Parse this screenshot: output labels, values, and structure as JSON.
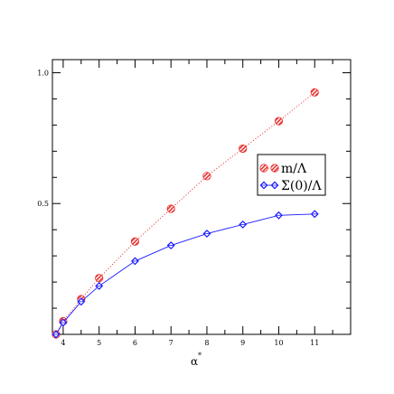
{
  "chart_data": {
    "type": "line",
    "title": "",
    "xlabel": "α*",
    "ylabel": "",
    "xlim": [
      3.7,
      12.0
    ],
    "ylim": [
      0.0,
      1.05
    ],
    "x_ticks": [
      "4",
      "5",
      "6",
      "7",
      "8",
      "9",
      "10",
      "11"
    ],
    "y_ticks": [
      "0.5",
      "1.0"
    ],
    "grid": false,
    "legend_position": "right",
    "series": [
      {
        "name": "m/Λ",
        "color": "#e8312f",
        "line_style": "dotted",
        "marker": "hatched-circle",
        "x": [
          3.8,
          4.0,
          4.5,
          5.0,
          6.0,
          7.0,
          8.0,
          9.0,
          10.0,
          11.0
        ],
        "y": [
          0.0,
          0.05,
          0.135,
          0.215,
          0.355,
          0.48,
          0.605,
          0.71,
          0.815,
          0.925
        ]
      },
      {
        "name": "Σ(0)/Λ",
        "color": "#1a1aff",
        "line_style": "solid",
        "marker": "diamond",
        "x": [
          3.8,
          4.0,
          4.5,
          5.0,
          6.0,
          7.0,
          8.0,
          9.0,
          10.0,
          11.0
        ],
        "y": [
          0.0,
          0.045,
          0.125,
          0.185,
          0.28,
          0.34,
          0.385,
          0.42,
          0.455,
          0.46
        ]
      }
    ]
  }
}
